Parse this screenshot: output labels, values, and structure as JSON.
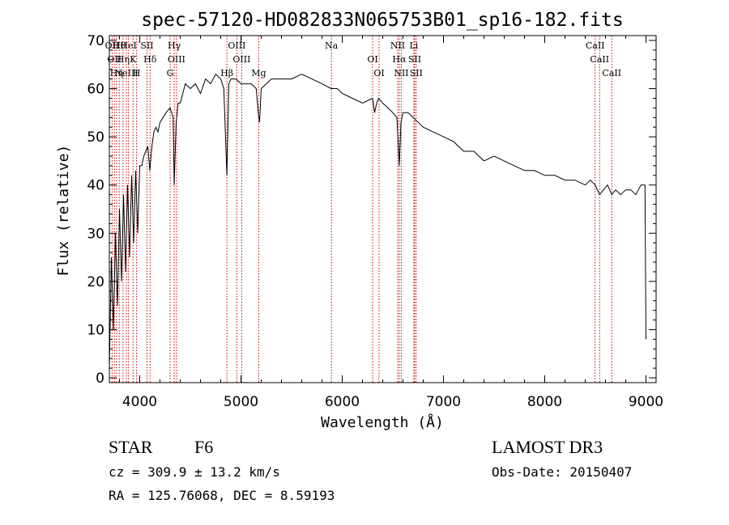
{
  "chart_data": {
    "type": "line",
    "title": "spec-57120-HD082833N065753B01_sp16-182.fits",
    "xlabel": "Wavelength (Å)",
    "ylabel": "Flux (relative)",
    "xlim": [
      3700,
      9100
    ],
    "ylim": [
      -1,
      71
    ],
    "x_ticks": [
      4000,
      5000,
      6000,
      7000,
      8000,
      9000
    ],
    "y_ticks": [
      0,
      10,
      20,
      30,
      40,
      50,
      60,
      70
    ],
    "grid": false,
    "line_color": "#000000",
    "marker_color": "#cc0000",
    "series": [
      {
        "x": [
          3700,
          3720,
          3740,
          3760,
          3780,
          3800,
          3820,
          3840,
          3860,
          3880,
          3900,
          3920,
          3940,
          3960,
          3980,
          4000,
          4020,
          4040,
          4060,
          4080,
          4100,
          4120,
          4140,
          4160,
          4180,
          4200,
          4230,
          4260,
          4300,
          4330,
          4340,
          4360,
          4380,
          4400,
          4450,
          4500,
          4550,
          4600,
          4650,
          4700,
          4750,
          4800,
          4830,
          4861,
          4880,
          4900,
          4950,
          5000,
          5050,
          5100,
          5150,
          5170,
          5183,
          5200,
          5250,
          5300,
          5400,
          5500,
          5600,
          5700,
          5800,
          5890,
          5950,
          6000,
          6100,
          6200,
          6300,
          6320,
          6340,
          6360,
          6400,
          6450,
          6500,
          6540,
          6563,
          6580,
          6600,
          6650,
          6700,
          6750,
          6800,
          6900,
          7000,
          7100,
          7200,
          7300,
          7400,
          7500,
          7600,
          7700,
          7800,
          7900,
          8000,
          8100,
          8200,
          8300,
          8400,
          8450,
          8498,
          8542,
          8580,
          8620,
          8662,
          8700,
          8750,
          8800,
          8850,
          8900,
          8950,
          8990,
          9000
        ],
        "y": [
          2,
          25,
          10,
          30,
          15,
          35,
          20,
          38,
          22,
          40,
          25,
          42,
          28,
          43,
          30,
          44,
          44,
          46,
          47,
          48,
          43,
          48,
          51,
          52,
          51,
          53,
          54,
          55,
          56,
          54,
          40,
          53,
          57,
          57,
          61,
          60,
          61,
          59,
          62,
          61,
          63,
          62,
          60,
          42,
          61,
          62,
          62,
          61,
          61,
          61,
          60,
          55,
          53,
          60,
          61,
          62,
          62,
          62,
          63,
          62,
          61,
          60,
          60,
          59,
          58,
          57,
          58,
          55,
          57,
          58,
          57,
          56,
          55,
          54,
          44,
          53,
          55,
          55,
          54,
          53,
          52,
          51,
          50,
          49,
          47,
          47,
          45,
          46,
          45,
          44,
          43,
          43,
          42,
          42,
          41,
          41,
          40,
          41,
          40,
          38,
          39,
          40,
          38,
          39,
          38,
          39,
          39,
          38,
          40,
          40,
          8
        ]
      }
    ],
    "lines": [
      {
        "x": 3727,
        "labels": [
          "OII"
        ]
      },
      {
        "x": 3750,
        "labels": [
          "OII"
        ]
      },
      {
        "x": 3771,
        "labels": [
          "Hη"
        ]
      },
      {
        "x": 3798,
        "labels": [
          "Hθ"
        ]
      },
      {
        "x": 3835,
        "labels": [
          "Hη"
        ]
      },
      {
        "x": 3869,
        "labels": [
          "NeIII"
        ]
      },
      {
        "x": 3889,
        "labels": [
          "HeI"
        ]
      },
      {
        "x": 3934,
        "labels": [
          "K"
        ]
      },
      {
        "x": 3969,
        "labels": [
          "H"
        ]
      },
      {
        "x": 4072,
        "labels": [
          "SII"
        ]
      },
      {
        "x": 4102,
        "labels": [
          "Hδ"
        ]
      },
      {
        "x": 4300,
        "labels": [
          "G"
        ]
      },
      {
        "x": 4341,
        "labels": [
          "Hγ"
        ]
      },
      {
        "x": 4363,
        "labels": [
          "OIII"
        ]
      },
      {
        "x": 4861,
        "labels": [
          "Hβ"
        ]
      },
      {
        "x": 4959,
        "labels": [
          "OIII"
        ]
      },
      {
        "x": 5007,
        "labels": [
          "OIII"
        ]
      },
      {
        "x": 5175,
        "labels": [
          "Mg"
        ]
      },
      {
        "x": 5893,
        "labels": [
          "Na"
        ]
      },
      {
        "x": 6300,
        "labels": [
          "OI"
        ]
      },
      {
        "x": 6364,
        "labels": [
          "OI"
        ]
      },
      {
        "x": 6548,
        "labels": [
          "NII"
        ]
      },
      {
        "x": 6563,
        "labels": [
          "Hα"
        ]
      },
      {
        "x": 6583,
        "labels": [
          "NII"
        ]
      },
      {
        "x": 6707,
        "labels": [
          "Li"
        ]
      },
      {
        "x": 6716,
        "labels": [
          "SII"
        ]
      },
      {
        "x": 6731,
        "labels": [
          "SII"
        ]
      },
      {
        "x": 8498,
        "labels": [
          "CaII"
        ]
      },
      {
        "x": 8542,
        "labels": [
          "CaII"
        ]
      },
      {
        "x": 8662,
        "labels": [
          "CaII"
        ]
      }
    ]
  },
  "info": {
    "object_class": "STAR",
    "subclass": "F6",
    "survey": "LAMOST DR3",
    "cz": "cz = 309.9 ± 13.2 km/s",
    "obs_date": "Obs-Date: 20150407",
    "radec": "RA = 125.76068, DEC =   8.59193"
  }
}
